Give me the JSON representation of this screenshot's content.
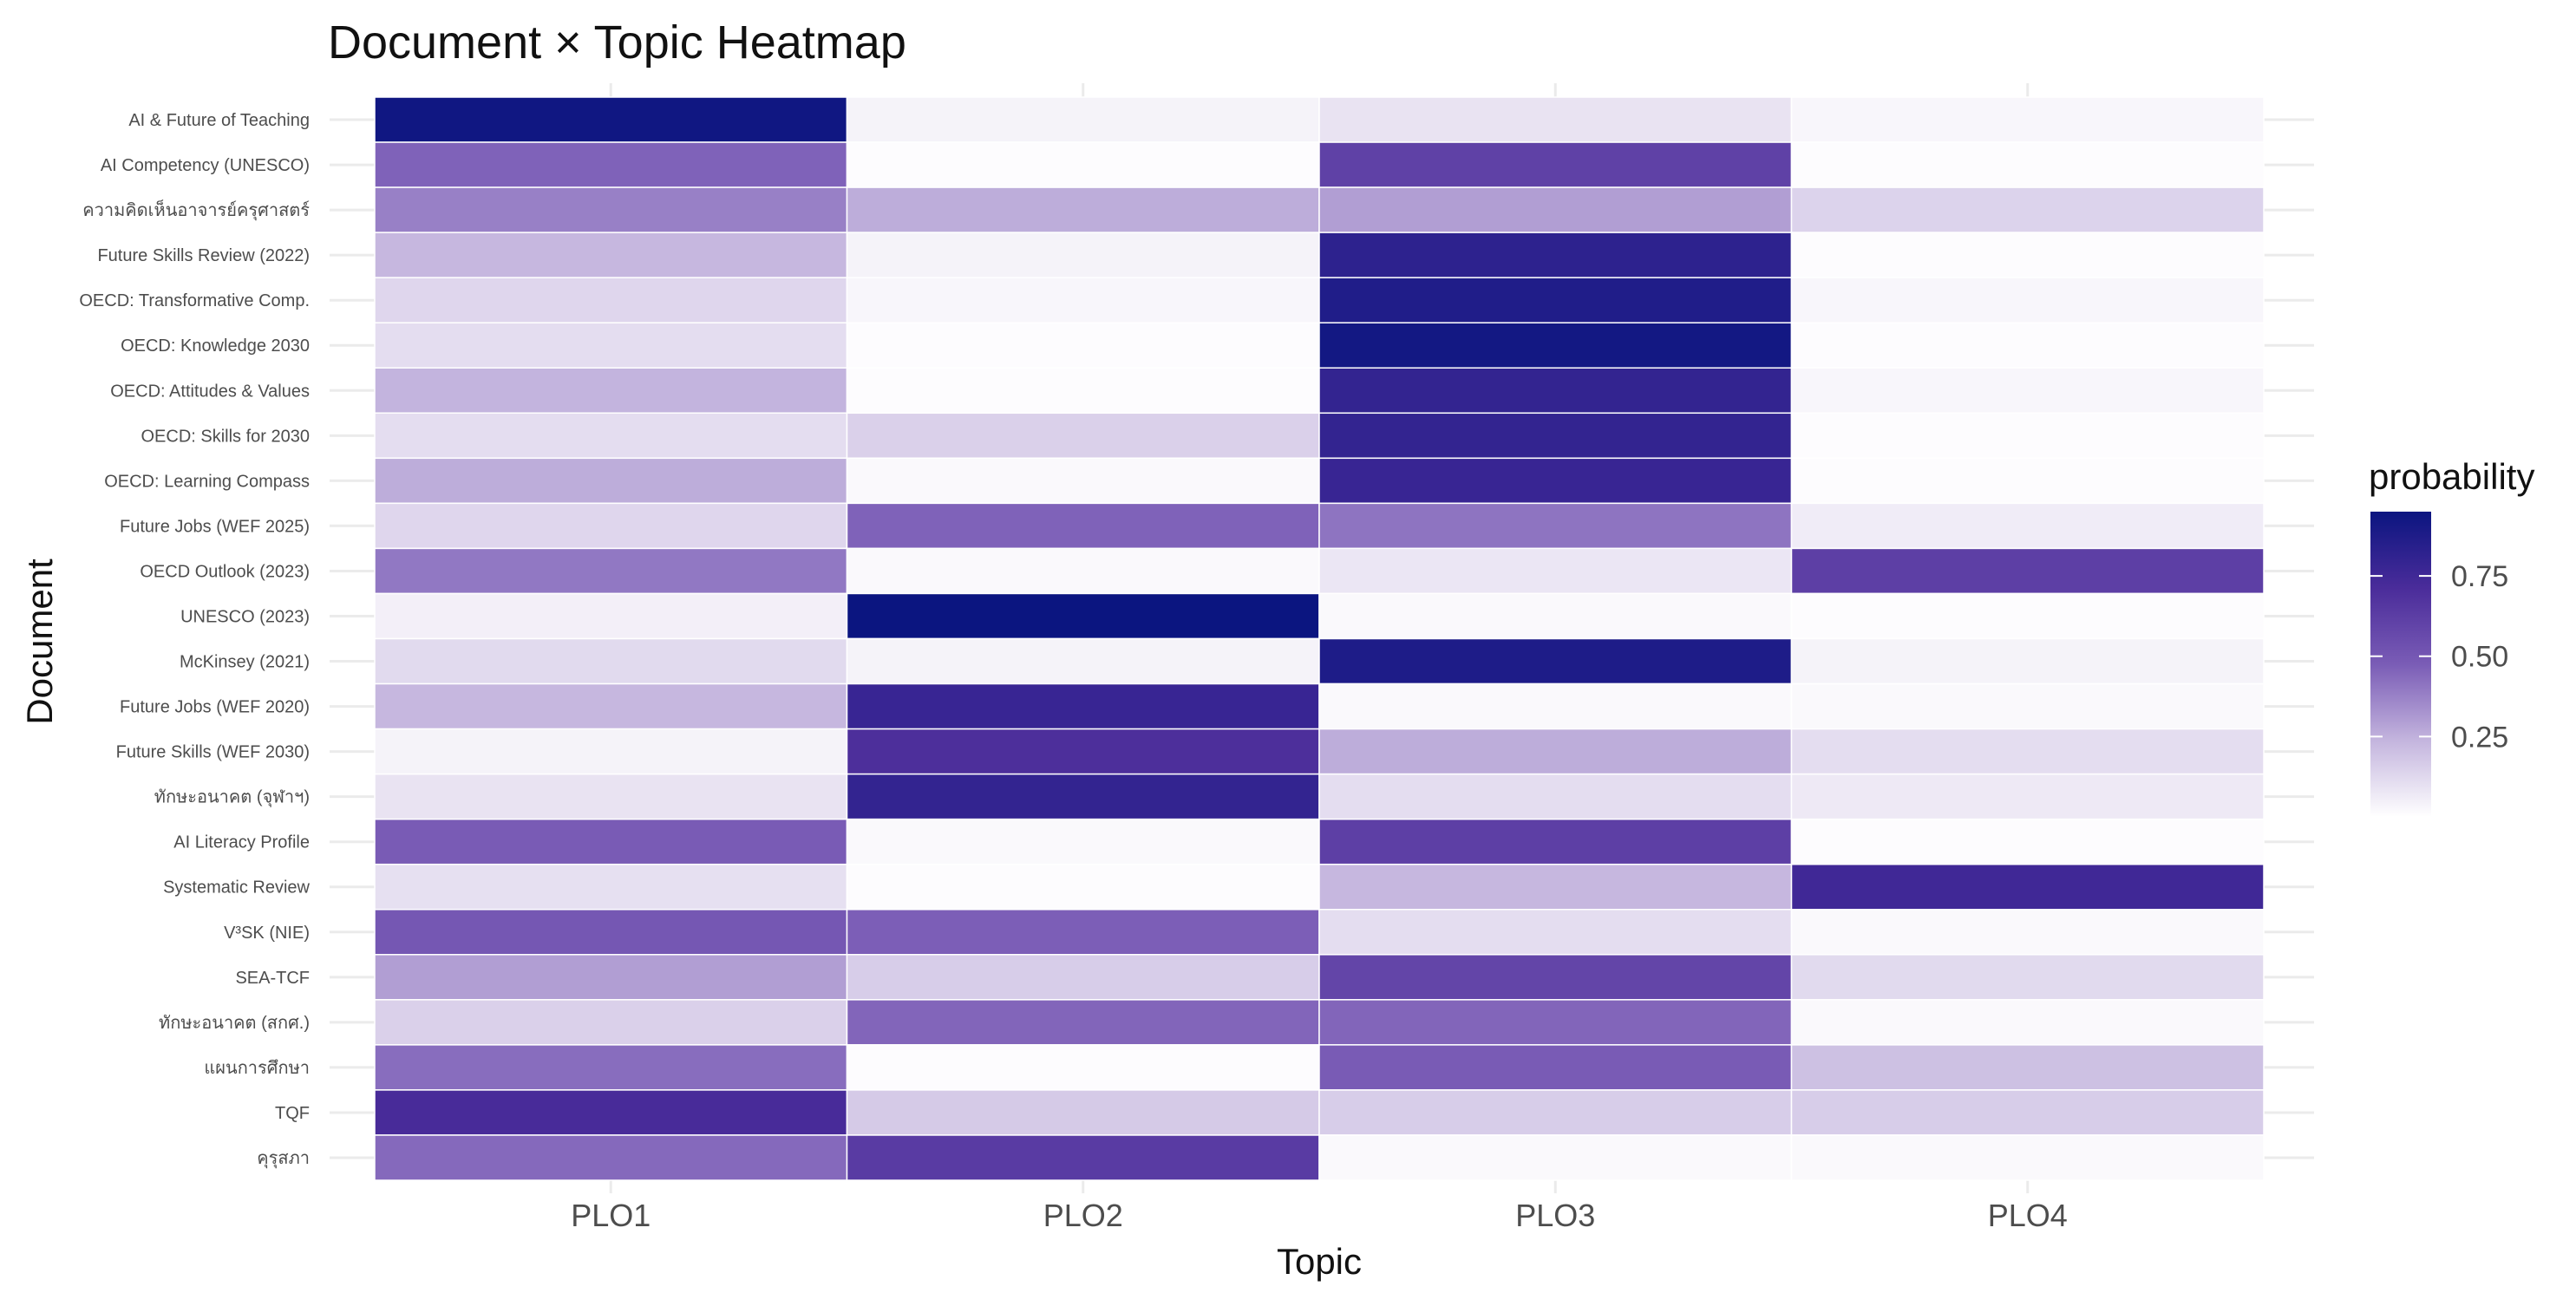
{
  "chart_data": {
    "type": "heatmap",
    "title": "Document × Topic Heatmap",
    "xlabel": "Topic",
    "ylabel": "Document",
    "x": [
      "PLO1",
      "PLO2",
      "PLO3",
      "PLO4"
    ],
    "y": [
      "AI & Future of Teaching",
      "AI Competency (UNESCO)",
      "ความคิดเห็นอาจารย์ครุศาสตร์",
      "Future Skills Review (2022)",
      "OECD: Transformative Comp.",
      "OECD: Knowledge 2030",
      "OECD: Attitudes & Values",
      "OECD: Skills for 2030",
      "OECD: Learning Compass",
      "Future Jobs (WEF 2025)",
      "OECD Outlook (2023)",
      "UNESCO (2023)",
      "McKinsey (2021)",
      "Future Jobs (WEF 2020)",
      "Future Skills (WEF 2030)",
      "ทักษะอนาคต (จุฬาฯ)",
      "AI Literacy Profile",
      "Systematic Review",
      "V³SK (NIE)",
      "SEA-TCF",
      "ทักษะอนาคต (สกศ.)",
      "แผนการศึกษา",
      "TQF",
      "คุรุสภา"
    ],
    "values": [
      [
        0.93,
        0.04,
        0.09,
        0.03
      ],
      [
        0.46,
        0.01,
        0.61,
        0.01
      ],
      [
        0.38,
        0.26,
        0.3,
        0.14
      ],
      [
        0.23,
        0.04,
        0.82,
        0.01
      ],
      [
        0.13,
        0.03,
        0.87,
        0.03
      ],
      [
        0.11,
        0.01,
        0.92,
        0.01
      ],
      [
        0.24,
        0.01,
        0.8,
        0.03
      ],
      [
        0.11,
        0.15,
        0.8,
        0.01
      ],
      [
        0.26,
        0.02,
        0.78,
        0.01
      ],
      [
        0.13,
        0.46,
        0.41,
        0.06
      ],
      [
        0.4,
        0.02,
        0.08,
        0.62
      ],
      [
        0.05,
        0.95,
        0.02,
        0.01
      ],
      [
        0.12,
        0.04,
        0.88,
        0.04
      ],
      [
        0.23,
        0.78,
        0.02,
        0.02
      ],
      [
        0.04,
        0.7,
        0.26,
        0.11
      ],
      [
        0.09,
        0.8,
        0.11,
        0.07
      ],
      [
        0.48,
        0.02,
        0.62,
        0.01
      ],
      [
        0.1,
        0.01,
        0.23,
        0.75
      ],
      [
        0.5,
        0.47,
        0.11,
        0.02
      ],
      [
        0.3,
        0.16,
        0.59,
        0.12
      ],
      [
        0.15,
        0.45,
        0.45,
        0.02
      ],
      [
        0.43,
        0.01,
        0.48,
        0.2
      ],
      [
        0.72,
        0.17,
        0.16,
        0.16
      ],
      [
        0.44,
        0.64,
        0.02,
        0.02
      ]
    ],
    "colorbar": {
      "title": "probability",
      "ticks": [
        "0.25",
        "0.50",
        "0.75"
      ],
      "tick_values": [
        0.25,
        0.5,
        0.75
      ],
      "range": [
        0.0,
        0.95
      ],
      "colors": [
        "#ffffff",
        "#c4b5de",
        "#7a5cb6",
        "#4a2c9a",
        "#0b1580"
      ]
    },
    "grid": true,
    "legend_position": "right"
  }
}
